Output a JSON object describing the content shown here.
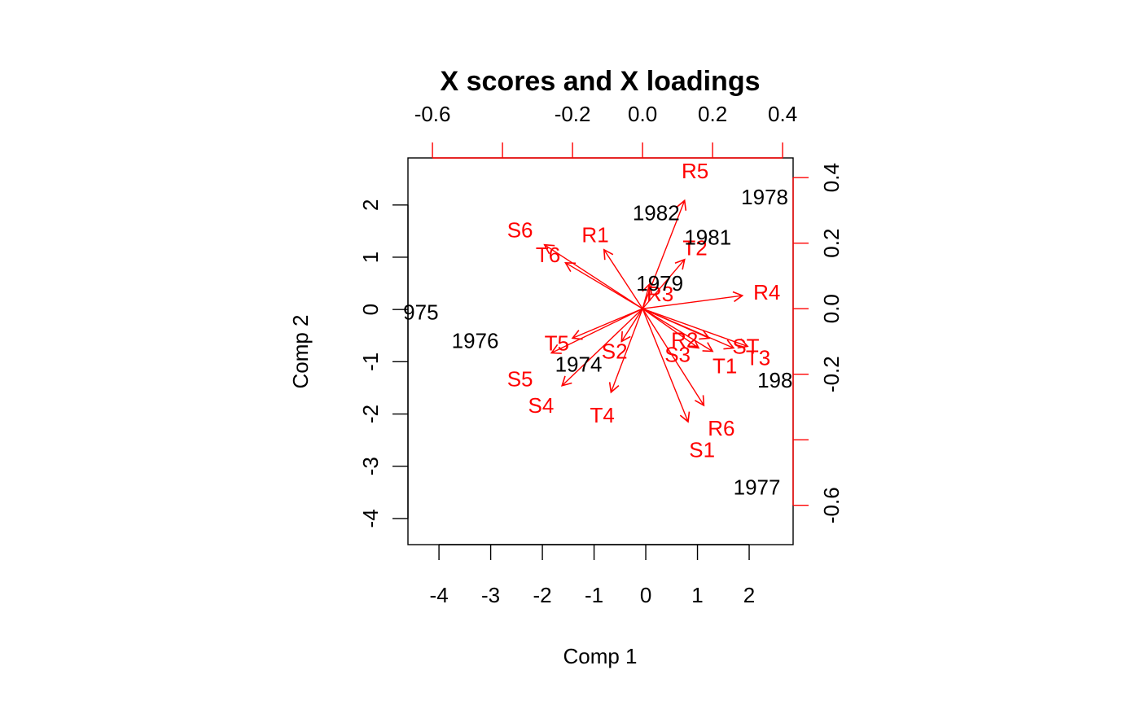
{
  "chart_data": {
    "type": "biplot",
    "title": "X scores and X loadings",
    "xlabel": "Comp 1",
    "ylabel": "Comp 2",
    "colors": {
      "scores": "#000000",
      "loadings": "#ff0000"
    },
    "bottom_axis": {
      "range": [
        -4.6,
        2.85
      ],
      "ticks": [
        -4,
        -3,
        -2,
        -1,
        0,
        1,
        2
      ]
    },
    "left_axis": {
      "range": [
        -4.5,
        2.9
      ],
      "ticks": [
        2,
        1,
        0,
        -1,
        -2,
        -3,
        -4
      ]
    },
    "top_axis": {
      "range": [
        -0.67,
        0.43
      ],
      "ticks": [
        -0.6,
        -0.4,
        -0.2,
        0.0,
        0.2,
        0.4
      ],
      "tick_labels": [
        "-0.6",
        "",
        "-0.2",
        "0.0",
        "0.2",
        "0.4"
      ]
    },
    "right_axis": {
      "range": [
        -0.72,
        0.46
      ],
      "ticks": [
        0.4,
        0.2,
        0.0,
        -0.2,
        -0.4,
        -0.6
      ],
      "tick_labels": [
        "0.4",
        "0.2",
        "0.0",
        "-0.2",
        "",
        "-0.6"
      ]
    },
    "scores": [
      {
        "label": "1978",
        "x": 2.3,
        "y": 2.15
      },
      {
        "label": "1982",
        "x": 0.2,
        "y": 1.85
      },
      {
        "label": "1981",
        "x": 1.2,
        "y": 1.38
      },
      {
        "label": "1979",
        "x": 0.27,
        "y": 0.5
      },
      {
        "label": "975",
        "x": -4.35,
        "y": -0.05
      },
      {
        "label": "1976",
        "x": -3.3,
        "y": -0.6
      },
      {
        "label": "1974",
        "x": -1.3,
        "y": -1.05
      },
      {
        "label": "198",
        "x": 2.5,
        "y": -1.35
      },
      {
        "label": "1977",
        "x": 2.15,
        "y": -3.4
      }
    ],
    "loadings": [
      {
        "label": "R5",
        "x": 0.12,
        "y": 0.33,
        "lx": 0.15,
        "ly": 0.42
      },
      {
        "label": "R1",
        "x": -0.11,
        "y": 0.18,
        "lx": -0.135,
        "ly": 0.225
      },
      {
        "label": "S6",
        "x": -0.28,
        "y": 0.195,
        "lx": -0.35,
        "ly": 0.24
      },
      {
        "label": "T6",
        "x": -0.22,
        "y": 0.14,
        "lx": -0.27,
        "ly": 0.165
      },
      {
        "label": "T2",
        "x": 0.12,
        "y": 0.15,
        "lx": 0.15,
        "ly": 0.185
      },
      {
        "label": "R3",
        "x": 0.02,
        "y": 0.075,
        "lx": 0.05,
        "ly": 0.045
      },
      {
        "label": "R4",
        "x": 0.285,
        "y": 0.04,
        "lx": 0.355,
        "ly": 0.05
      },
      {
        "label": "T5",
        "x": -0.2,
        "y": -0.09,
        "lx": -0.245,
        "ly": -0.105
      },
      {
        "label": "S2",
        "x": -0.06,
        "y": -0.1,
        "lx": -0.08,
        "ly": -0.13
      },
      {
        "label": "S5",
        "x": -0.26,
        "y": -0.135,
        "lx": -0.35,
        "ly": -0.215
      },
      {
        "label": "S4",
        "x": -0.23,
        "y": -0.235,
        "lx": -0.29,
        "ly": -0.295
      },
      {
        "label": "T4",
        "x": -0.09,
        "y": -0.255,
        "lx": -0.115,
        "ly": -0.325
      },
      {
        "label": "R2",
        "x": 0.19,
        "y": -0.09,
        "lx": 0.12,
        "ly": -0.095
      },
      {
        "label": "S3",
        "x": 0.16,
        "y": -0.12,
        "lx": 0.1,
        "ly": -0.14
      },
      {
        "label": "ST",
        "x": 0.3,
        "y": -0.115,
        "lx": 0.295,
        "ly": -0.115
      },
      {
        "label": "T3",
        "x": 0.26,
        "y": -0.12,
        "lx": 0.33,
        "ly": -0.15
      },
      {
        "label": "T1",
        "x": 0.2,
        "y": -0.13,
        "lx": 0.235,
        "ly": -0.175
      },
      {
        "label": "R6",
        "x": 0.175,
        "y": -0.295,
        "lx": 0.225,
        "ly": -0.365
      },
      {
        "label": "S1",
        "x": 0.13,
        "y": -0.345,
        "lx": 0.17,
        "ly": -0.43
      }
    ]
  }
}
